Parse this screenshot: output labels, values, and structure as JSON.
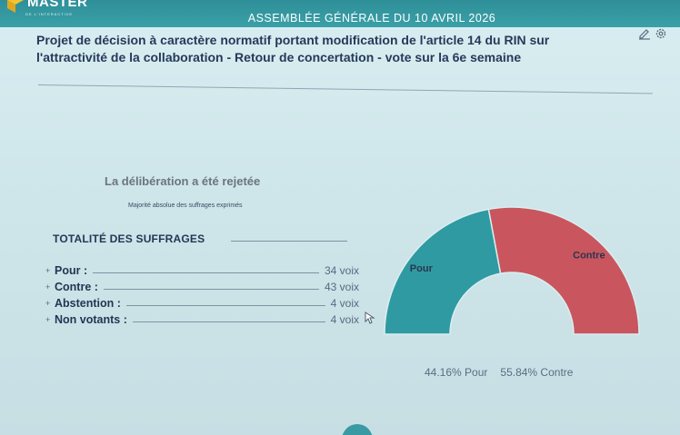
{
  "header": {
    "logo_text": "MASTER",
    "logo_subtext": "DE L'INTERACTIVE",
    "meeting_title": "ASSEMBLÉE GÉNÉRALE DU 10 AVRIL 2026",
    "icons": [
      "edit-icon",
      "settings-icon"
    ]
  },
  "proposal": {
    "line1": "Projet de décision à caractère normatif portant modification de l'article 14 du RIN sur",
    "line2": "l'attractivité de la collaboration - Retour de concertation - vote sur la 6e semaine"
  },
  "result": {
    "status": "La délibération a été rejetée",
    "majority_rule": "Majorité absolue des suffrages exprimés"
  },
  "totals": {
    "heading": "TOTALITÉ DES SUFFRAGES",
    "rows": [
      {
        "label": "Pour :",
        "value": "34 voix"
      },
      {
        "label": "Contre :",
        "value": "43 voix"
      },
      {
        "label": "Abstention :",
        "value": "4 voix"
      },
      {
        "label": "Non votants :",
        "value": "4 voix"
      }
    ]
  },
  "chart_data": {
    "type": "pie",
    "shape": "half-donut",
    "categories": [
      "Pour",
      "Contre"
    ],
    "values": [
      34,
      43
    ],
    "percent_labels": [
      "44.16% Pour",
      "55.84% Contre"
    ],
    "colors": {
      "Pour": "#2f9aa1",
      "Contre": "#c9565e"
    }
  }
}
